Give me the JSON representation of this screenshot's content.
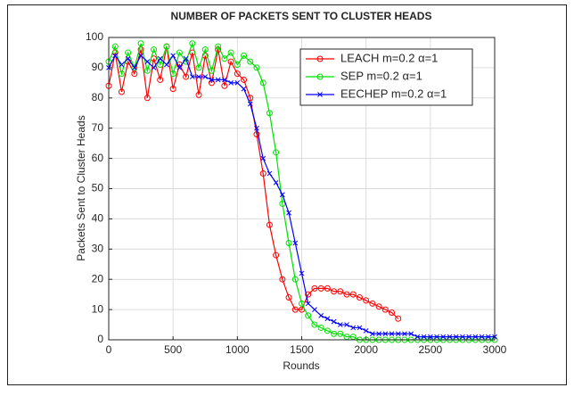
{
  "chart_data": {
    "type": "line",
    "title": "NUMBER OF PACKETS SENT TO CLUSTER HEADS",
    "x_label": "Rounds",
    "y_label": "Packets Sent to Cluster Heads",
    "x": [
      0,
      50,
      100,
      150,
      200,
      250,
      300,
      350,
      400,
      450,
      500,
      550,
      600,
      650,
      700,
      750,
      800,
      850,
      900,
      950,
      1000,
      1050,
      1100,
      1150,
      1200,
      1250,
      1300,
      1350,
      1400,
      1450,
      1500,
      1550,
      1600,
      1650,
      1700,
      1750,
      1800,
      1850,
      1900,
      1950,
      2000,
      2050,
      2100,
      2150,
      2200,
      2250,
      2300,
      2350,
      2400,
      2450,
      2500,
      2550,
      2600,
      2650,
      2700,
      2750,
      2800,
      2850,
      2900,
      2950,
      3000
    ],
    "series": [
      {
        "name": "LEACH m=0.2 α=1",
        "color": "#ff0000",
        "marker": "circle",
        "values": [
          84,
          95,
          82,
          92,
          88,
          96,
          80,
          93,
          86,
          97,
          83,
          91,
          87,
          95,
          81,
          94,
          85,
          96,
          84,
          92,
          88,
          86,
          80,
          68,
          55,
          38,
          28,
          20,
          14,
          10,
          10,
          15,
          17,
          17,
          17,
          16,
          16,
          15,
          15,
          14,
          13,
          12,
          11,
          10,
          9,
          7,
          null,
          null,
          null,
          null,
          null,
          null,
          null,
          null,
          null,
          null,
          null,
          null,
          null,
          null,
          null
        ]
      },
      {
        "name": "SEP m=0.2 α=1",
        "color": "#00e000",
        "marker": "circle",
        "values": [
          92,
          97,
          88,
          95,
          90,
          98,
          89,
          96,
          91,
          97,
          88,
          95,
          92,
          98,
          90,
          96,
          89,
          97,
          93,
          95,
          91,
          94,
          92,
          90,
          85,
          75,
          62,
          45,
          32,
          20,
          12,
          8,
          5,
          4,
          3,
          2,
          2,
          1,
          1,
          0,
          0,
          0,
          0,
          0,
          0,
          0,
          0,
          0,
          0,
          0,
          0,
          0,
          0,
          0,
          0,
          0,
          0,
          0,
          0,
          0,
          0
        ]
      },
      {
        "name": "EECHEP m=0.2 α=1",
        "color": "#0000ff",
        "marker": "x",
        "values": [
          90,
          94,
          91,
          93,
          90,
          94,
          92,
          90,
          93,
          91,
          94,
          90,
          93,
          87,
          87,
          87,
          86,
          86,
          86,
          85,
          85,
          83,
          78,
          70,
          60,
          55,
          52,
          48,
          42,
          32,
          22,
          12,
          10,
          8,
          7,
          6,
          5,
          5,
          4,
          4,
          3,
          2,
          2,
          2,
          2,
          2,
          2,
          2,
          1,
          1,
          1,
          1,
          1,
          1,
          1,
          1,
          1,
          1,
          1,
          1,
          1
        ]
      }
    ],
    "xlim": [
      0,
      3000
    ],
    "xticks": [
      0,
      500,
      1000,
      1500,
      2000,
      2500,
      3000
    ],
    "ylim": [
      0,
      100
    ],
    "yticks": [
      0,
      10,
      20,
      30,
      40,
      50,
      60,
      70,
      80,
      90,
      100
    ],
    "grid": true,
    "legend": "top-right"
  }
}
